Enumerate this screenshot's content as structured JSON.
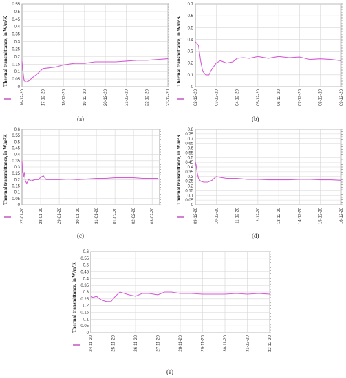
{
  "chart_data": [
    {
      "id": "a",
      "panel_label": "(a)",
      "type": "line",
      "ylabel": "Thermal transmittance, in W/m²K",
      "ylim": [
        0,
        0.55
      ],
      "yticks": [
        0,
        0.05,
        0.1,
        0.15,
        0.2,
        0.25,
        0.3,
        0.35,
        0.4,
        0.45,
        0.5,
        0.55
      ],
      "ytick_labels": [
        "0",
        "0.05",
        "0.1",
        "0.15",
        "0.2",
        "0.25",
        "0.3",
        "0.35",
        "0.4",
        "0.45",
        "0.5",
        "0.55"
      ],
      "xticks": [
        "16-12-20",
        "17-12-20",
        "18-12-20",
        "19-12-20",
        "20-12-20",
        "21-12-20",
        "22-12-20",
        "23-12-20"
      ],
      "grid": true,
      "series": [
        {
          "x": [
            0,
            0.03,
            0.1,
            0.2,
            0.35,
            0.5,
            0.7,
            1.0,
            1.3,
            1.6,
            2.0,
            2.5,
            3.0,
            3.5,
            4.0,
            4.5,
            5.0,
            5.5,
            6.0,
            6.5,
            7.0
          ],
          "y": [
            0.17,
            0.12,
            0.04,
            0.03,
            0.04,
            0.06,
            0.08,
            0.12,
            0.125,
            0.13,
            0.145,
            0.155,
            0.155,
            0.165,
            0.165,
            0.165,
            0.17,
            0.175,
            0.175,
            0.18,
            0.185
          ]
        }
      ]
    },
    {
      "id": "b",
      "panel_label": "(b)",
      "type": "line",
      "ylabel": "Thermal transmittance, in W/m²K",
      "ylim": [
        0,
        0.7
      ],
      "yticks": [
        0,
        0.1,
        0.2,
        0.3,
        0.4,
        0.5,
        0.6,
        0.7
      ],
      "ytick_labels": [
        "0",
        "0.1",
        "0.2",
        "0.3",
        "0.4",
        "0.5",
        "0.6",
        "0.7"
      ],
      "xticks": [
        "02-12-20",
        "03-12-20",
        "04-12-20",
        "05-12-20",
        "06-12-20",
        "07-12-20",
        "08-12-20",
        "09-12-20"
      ],
      "grid": true,
      "series": [
        {
          "x": [
            0,
            0.05,
            0.15,
            0.25,
            0.35,
            0.5,
            0.65,
            0.8,
            1.0,
            1.2,
            1.5,
            1.8,
            2.0,
            2.3,
            2.6,
            3.0,
            3.5,
            4.0,
            4.5,
            5.0,
            5.5,
            6.0,
            6.5,
            7.0
          ],
          "y": [
            0.38,
            0.37,
            0.35,
            0.22,
            0.13,
            0.1,
            0.1,
            0.15,
            0.2,
            0.22,
            0.2,
            0.21,
            0.24,
            0.245,
            0.24,
            0.255,
            0.24,
            0.255,
            0.245,
            0.25,
            0.23,
            0.235,
            0.23,
            0.22
          ]
        }
      ]
    },
    {
      "id": "c",
      "panel_label": "(c)",
      "type": "line",
      "ylabel": "Thermal transmittance, in W/m²K",
      "ylim": [
        0,
        0.6
      ],
      "yticks": [
        0,
        0.05,
        0.1,
        0.15,
        0.2,
        0.25,
        0.3,
        0.35,
        0.4,
        0.45,
        0.5,
        0.55,
        0.6
      ],
      "ytick_labels": [
        "0",
        "0.05",
        "0.1",
        "0.15",
        "0.2",
        "0.25",
        "0.3",
        "0.35",
        "0.4",
        "0.45",
        "0.5",
        "0.55",
        "0.6"
      ],
      "xticks": [
        "27-01-20",
        "28-01-20",
        "29-01-20",
        "30-01-20",
        "31-01-20",
        "01-02-20",
        "02-02-20",
        "03-02-20"
      ],
      "grid": true,
      "series": [
        {
          "x": [
            0,
            0.03,
            0.08,
            0.12,
            0.18,
            0.25,
            0.35,
            0.5,
            0.7,
            0.9,
            1.0,
            1.15,
            1.3,
            1.6,
            2.0,
            2.5,
            3.0,
            3.5,
            4.0,
            4.5,
            5.0,
            5.5,
            6.0,
            6.5,
            7.0,
            7.3
          ],
          "y": [
            0.35,
            0.27,
            0.22,
            0.26,
            0.19,
            0.17,
            0.2,
            0.19,
            0.2,
            0.2,
            0.22,
            0.23,
            0.2,
            0.2,
            0.2,
            0.205,
            0.2,
            0.205,
            0.21,
            0.21,
            0.215,
            0.215,
            0.215,
            0.21,
            0.21,
            0.21
          ]
        }
      ]
    },
    {
      "id": "d",
      "panel_label": "(d)",
      "type": "line",
      "ylabel": "Thermal transmittance, in W/m²K",
      "ylim": [
        0,
        0.8
      ],
      "yticks": [
        0,
        0.05,
        0.1,
        0.15,
        0.2,
        0.25,
        0.3,
        0.35,
        0.4,
        0.45,
        0.5,
        0.55,
        0.6,
        0.65,
        0.7,
        0.75,
        0.8
      ],
      "ytick_labels": [
        "0",
        "0.05",
        "0.1",
        "0.15",
        "0.2",
        "0.25",
        "0.3",
        "0.35",
        "0.4",
        "0.45",
        "0.5",
        "0.55",
        "0.6",
        "0.65",
        "0.7",
        "0.75",
        "0.8"
      ],
      "xticks": [
        "09-12-20",
        "10-12-20",
        "11-12-20",
        "12-12-20",
        "13-12-20",
        "14-12-20",
        "15-12-20",
        "16-12-20"
      ],
      "grid": true,
      "series": [
        {
          "x": [
            0,
            0.03,
            0.08,
            0.15,
            0.25,
            0.4,
            0.6,
            0.8,
            1.0,
            1.2,
            1.5,
            2.0,
            2.5,
            3.0,
            3.5,
            4.0,
            4.5,
            5.0,
            5.5,
            6.0,
            6.5,
            7.0
          ],
          "y": [
            0.45,
            0.43,
            0.35,
            0.28,
            0.25,
            0.24,
            0.24,
            0.26,
            0.3,
            0.29,
            0.28,
            0.28,
            0.27,
            0.27,
            0.265,
            0.265,
            0.265,
            0.27,
            0.27,
            0.265,
            0.265,
            0.26
          ]
        }
      ]
    },
    {
      "id": "e",
      "panel_label": "(e)",
      "type": "line",
      "ylabel": "Thermal transmittance, in W/m²K",
      "ylim": [
        0,
        0.6
      ],
      "yticks": [
        0,
        0.05,
        0.1,
        0.15,
        0.2,
        0.25,
        0.3,
        0.35,
        0.4,
        0.45,
        0.5,
        0.55,
        0.6
      ],
      "ytick_labels": [
        "0",
        "0.05",
        "0.1",
        "0.15",
        "0.2",
        "0.25",
        "0.3",
        "0.35",
        "0.4",
        "0.45",
        "0.5",
        "0.55",
        "0.6"
      ],
      "xticks": [
        "24-11-20",
        "25-11-20",
        "26-11-20",
        "27-11-20",
        "28-11-20",
        "29-11-20",
        "30-11-20",
        "31-12-20",
        "32-12-20"
      ],
      "grid": true,
      "series": [
        {
          "x": [
            0,
            0.1,
            0.25,
            0.4,
            0.5,
            0.7,
            0.9,
            1.1,
            1.3,
            1.5,
            1.7,
            2.0,
            2.3,
            2.6,
            3.0,
            3.3,
            3.6,
            4.0,
            4.5,
            5.0,
            5.5,
            6.0,
            6.5,
            7.0,
            7.5,
            8.0
          ],
          "y": [
            0.27,
            0.26,
            0.27,
            0.25,
            0.24,
            0.23,
            0.23,
            0.27,
            0.3,
            0.29,
            0.28,
            0.27,
            0.29,
            0.29,
            0.28,
            0.3,
            0.3,
            0.29,
            0.29,
            0.285,
            0.285,
            0.285,
            0.29,
            0.285,
            0.29,
            0.285
          ]
        }
      ]
    }
  ]
}
